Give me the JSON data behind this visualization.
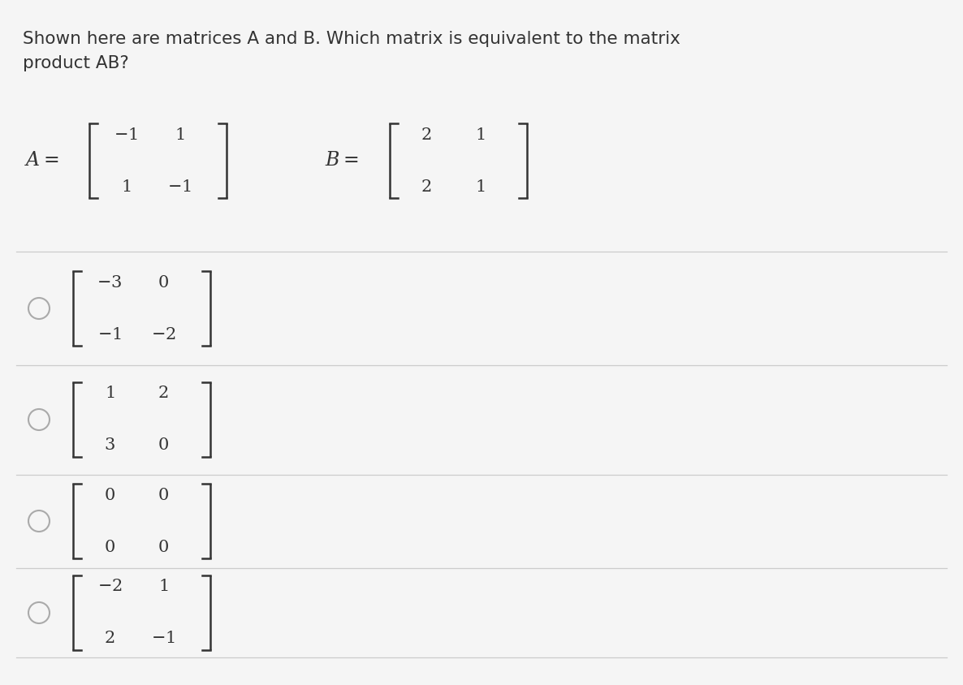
{
  "background_color": "#f5f5f5",
  "title_text1": "Shown here are matrices A and B. Which matrix is equivalent to the matrix",
  "title_text2": "product AB?",
  "title_fontsize": 15.5,
  "title_color": "#333333",
  "matrix_A": [
    [
      -1,
      1
    ],
    [
      1,
      -1
    ]
  ],
  "matrix_B": [
    [
      2,
      1
    ],
    [
      2,
      1
    ]
  ],
  "options": [
    [
      [
        -3,
        0
      ],
      [
        -1,
        -2
      ]
    ],
    [
      [
        1,
        2
      ],
      [
        3,
        0
      ]
    ],
    [
      [
        0,
        0
      ],
      [
        0,
        0
      ]
    ],
    [
      [
        -2,
        1
      ],
      [
        2,
        -1
      ]
    ]
  ],
  "text_color": "#333333",
  "line_color": "#cccccc",
  "radio_color": "#aaaaaa",
  "font_size_matrix": 15,
  "font_size_option": 15
}
